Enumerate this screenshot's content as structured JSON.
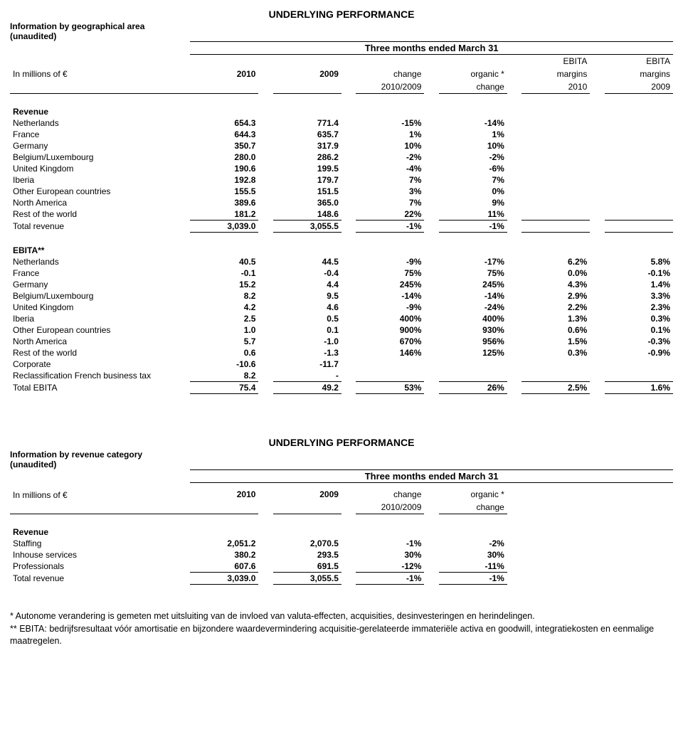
{
  "t1": {
    "title": "UNDERLYING PERFORMANCE",
    "info1": "Information by geographical area",
    "info2": "(unaudited)",
    "period": "Three months ended March 31",
    "unit": "In millions of €",
    "headers": {
      "c1": "2010",
      "c2": "2009",
      "c3a": "change",
      "c3b": "2010/2009",
      "c4a": "organic *",
      "c4b": "change",
      "c5a": "EBITA",
      "c5b": "margins",
      "c5c": "2010",
      "c6a": "EBITA",
      "c6b": "margins",
      "c6c": "2009"
    },
    "revenue": {
      "head": "Revenue",
      "rows": [
        {
          "label": "Netherlands",
          "c1": "654.3",
          "c2": "771.4",
          "c3": "-15%",
          "c4": "-14%"
        },
        {
          "label": "France",
          "c1": "644.3",
          "c2": "635.7",
          "c3": "1%",
          "c4": "1%"
        },
        {
          "label": "Germany",
          "c1": "350.7",
          "c2": "317.9",
          "c3": "10%",
          "c4": "10%"
        },
        {
          "label": "Belgium/Luxembourg",
          "c1": "280.0",
          "c2": "286.2",
          "c3": "-2%",
          "c4": "-2%"
        },
        {
          "label": "United Kingdom",
          "c1": "190.6",
          "c2": "199.5",
          "c3": "-4%",
          "c4": "-6%"
        },
        {
          "label": "Iberia",
          "c1": "192.8",
          "c2": "179.7",
          "c3": "7%",
          "c4": "7%"
        },
        {
          "label": "Other European countries",
          "c1": "155.5",
          "c2": "151.5",
          "c3": "3%",
          "c4": "0%"
        },
        {
          "label": "North America",
          "c1": "389.6",
          "c2": "365.0",
          "c3": "7%",
          "c4": "9%"
        },
        {
          "label": "Rest of the world",
          "c1": "181.2",
          "c2": "148.6",
          "c3": "22%",
          "c4": "11%"
        }
      ],
      "total": {
        "label": "Total revenue",
        "c1": "3,039.0",
        "c2": "3,055.5",
        "c3": "-1%",
        "c4": "-1%"
      }
    },
    "ebita": {
      "head": "EBITA**",
      "rows": [
        {
          "label": "Netherlands",
          "c1": "40.5",
          "c2": "44.5",
          "c3": "-9%",
          "c4": "-17%",
          "c5": "6.2%",
          "c6": "5.8%"
        },
        {
          "label": "France",
          "c1": "-0.1",
          "c2": "-0.4",
          "c3": "75%",
          "c4": "75%",
          "c5": "0.0%",
          "c6": "-0.1%"
        },
        {
          "label": "Germany",
          "c1": "15.2",
          "c2": "4.4",
          "c3": "245%",
          "c4": "245%",
          "c5": "4.3%",
          "c6": "1.4%"
        },
        {
          "label": "Belgium/Luxembourg",
          "c1": "8.2",
          "c2": "9.5",
          "c3": "-14%",
          "c4": "-14%",
          "c5": "2.9%",
          "c6": "3.3%"
        },
        {
          "label": "United Kingdom",
          "c1": "4.2",
          "c2": "4.6",
          "c3": "-9%",
          "c4": "-24%",
          "c5": "2.2%",
          "c6": "2.3%"
        },
        {
          "label": "Iberia",
          "c1": "2.5",
          "c2": "0.5",
          "c3": "400%",
          "c4": "400%",
          "c5": "1.3%",
          "c6": "0.3%"
        },
        {
          "label": "Other European countries",
          "c1": "1.0",
          "c2": "0.1",
          "c3": "900%",
          "c4": "930%",
          "c5": "0.6%",
          "c6": "0.1%"
        },
        {
          "label": "North America",
          "c1": "5.7",
          "c2": "-1.0",
          "c3": "670%",
          "c4": "956%",
          "c5": "1.5%",
          "c6": "-0.3%"
        },
        {
          "label": "Rest of the world",
          "c1": "0.6",
          "c2": "-1.3",
          "c3": "146%",
          "c4": "125%",
          "c5": "0.3%",
          "c6": "-0.9%"
        },
        {
          "label": "Corporate",
          "c1": "-10.6",
          "c2": "-11.7",
          "c3": "",
          "c4": "",
          "c5": "",
          "c6": ""
        },
        {
          "label": "Reclassification French business tax",
          "c1": "8.2",
          "c2": "-",
          "c3": "",
          "c4": "",
          "c5": "",
          "c6": ""
        }
      ],
      "total": {
        "label": "Total EBITA",
        "c1": "75.4",
        "c2": "49.2",
        "c3": "53%",
        "c4": "26%",
        "c5": "2.5%",
        "c6": "1.6%"
      }
    }
  },
  "t2": {
    "title": "UNDERLYING PERFORMANCE",
    "info1": "Information by revenue category",
    "info2": "(unaudited)",
    "period": "Three months ended March 31",
    "unit": "In millions of €",
    "headers": {
      "c1": "2010",
      "c2": "2009",
      "c3a": "change",
      "c3b": "2010/2009",
      "c4a": "organic *",
      "c4b": "change"
    },
    "revenue": {
      "head": "Revenue",
      "rows": [
        {
          "label": "Staffing",
          "c1": "2,051.2",
          "c2": "2,070.5",
          "c3": "-1%",
          "c4": "-2%"
        },
        {
          "label": "Inhouse services",
          "c1": "380.2",
          "c2": "293.5",
          "c3": "30%",
          "c4": "30%"
        },
        {
          "label": "Professionals",
          "c1": "607.6",
          "c2": "691.5",
          "c3": "-12%",
          "c4": "-11%"
        }
      ],
      "total": {
        "label": "Total revenue",
        "c1": "3,039.0",
        "c2": "3,055.5",
        "c3": "-1%",
        "c4": "-1%"
      }
    }
  },
  "footnotes": {
    "f1": "* Autonome verandering is gemeten met uitsluiting van de invloed van valuta-effecten, acquisities, desinvesteringen en herindelingen.",
    "f2": "** EBITA: bedrijfsresultaat vóór amortisatie en bijzondere waardevermindering acquisitie-gerelateerde immateriële activa en goodwill, integratiekosten en eenmalige maatregelen."
  }
}
